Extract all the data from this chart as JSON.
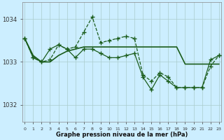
{
  "title": "Graphe pression niveau de la mer (hPa)",
  "bg_color": "#cceeff",
  "grid_color": "#aacccc",
  "line_color": "#1a5c1a",
  "x_ticks": [
    0,
    1,
    2,
    3,
    4,
    5,
    6,
    7,
    8,
    9,
    10,
    11,
    12,
    13,
    14,
    15,
    16,
    17,
    18,
    19,
    20,
    21,
    22,
    23
  ],
  "ylim": [
    1031.6,
    1034.4
  ],
  "yticks": [
    1032,
    1033,
    1034
  ],
  "series_dashed": [
    1033.55,
    1033.1,
    1033.0,
    1033.05,
    1033.4,
    1033.3,
    1033.35,
    1033.7,
    1034.05,
    1033.45,
    1033.5,
    1033.55,
    1033.6,
    1033.55,
    1032.7,
    1032.55,
    1032.75,
    1032.65,
    1032.4,
    1032.4,
    1032.4,
    1032.4,
    1032.9,
    1033.15
  ],
  "series_smooth": [
    1033.55,
    1033.15,
    1033.0,
    1033.0,
    1033.15,
    1033.25,
    1033.3,
    1033.35,
    1033.35,
    1033.35,
    1033.35,
    1033.35,
    1033.35,
    1033.35,
    1033.35,
    1033.35,
    1033.35,
    1033.35,
    1033.35,
    1032.95,
    1032.95,
    1032.95,
    1032.95,
    1032.95
  ],
  "series_zigzag": [
    1033.55,
    1033.1,
    1033.0,
    1033.3,
    1033.4,
    1033.3,
    1033.1,
    1033.3,
    1033.3,
    1033.2,
    1033.1,
    1033.1,
    1033.15,
    1033.2,
    1032.65,
    1032.35,
    1032.7,
    1032.55,
    1032.4,
    1032.4,
    1032.4,
    1032.4,
    1033.05,
    1033.15
  ]
}
